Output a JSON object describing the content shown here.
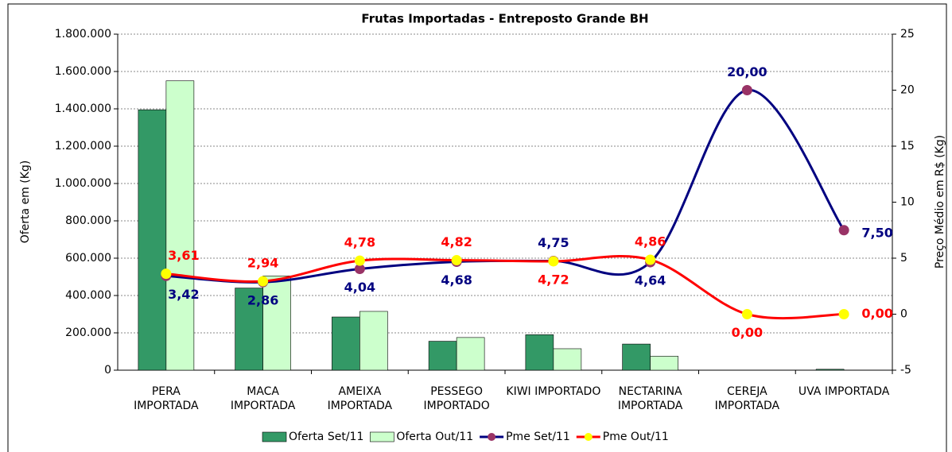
{
  "chart_data": {
    "type": "bar-line",
    "title": "Frutas Importadas - Entreposto Grande BH",
    "ylabel": "Oferta em (Kg)",
    "y2label": "Preço Médio em R$ (Kg)",
    "categories": [
      "PERA IMPORTADA",
      "MACA IMPORTADA",
      "AMEIXA IMPORTADA",
      "PESSEGO IMPORTADO",
      "KIWI IMPORTADO",
      "NECTARINA IMPORTADA",
      "CEREJA IMPORTADA",
      "UVA IMPORTADA"
    ],
    "series": [
      {
        "name": "Oferta Set/11",
        "type": "bar",
        "color": "#339966",
        "values": [
          1395000,
          440000,
          285000,
          155000,
          190000,
          140000,
          0,
          5000
        ]
      },
      {
        "name": "Oferta Out/11",
        "type": "bar",
        "color": "#ccffcc",
        "values": [
          1550000,
          505000,
          315000,
          175000,
          115000,
          75000,
          0,
          0
        ]
      },
      {
        "name": "Pme Set/11",
        "type": "line",
        "axis": "y2",
        "color": "#000080",
        "marker_color": "#993366",
        "values": [
          3.42,
          2.86,
          4.04,
          4.68,
          4.75,
          4.64,
          20.0,
          7.5
        ],
        "value_labels": [
          "3,42",
          "2,86",
          "4,04",
          "4,68",
          "4,75",
          "4,64",
          "20,00",
          "7,50"
        ]
      },
      {
        "name": "Pme Out/11",
        "type": "line",
        "axis": "y2",
        "color": "#ff0000",
        "marker_color": "#ffff00",
        "values": [
          3.61,
          2.94,
          4.78,
          4.82,
          4.72,
          4.86,
          0.0,
          0.0
        ],
        "value_labels": [
          "3,61",
          "2,94",
          "4,78",
          "4,82",
          "4,72",
          "4,86",
          "0,00",
          "0,00"
        ]
      }
    ],
    "ylim": [
      0,
      1800000
    ],
    "yticks": [
      0,
      {
        "value": 200000,
        "label": "200.000"
      },
      {
        "value": 400000,
        "label": "400.000"
      },
      {
        "value": 600000,
        "label": "600.000"
      },
      {
        "value": 800000,
        "label": "800.000"
      },
      {
        "value": 1000000,
        "label": "1.000.000"
      },
      {
        "value": 1200000,
        "label": "1.200.000"
      },
      {
        "value": 1400000,
        "label": "1.400.000"
      },
      {
        "value": 1600000,
        "label": "1.600.000"
      },
      {
        "value": 1800000,
        "label": "1.800.000"
      }
    ],
    "y2lim": [
      -5,
      25
    ],
    "y2ticks": [
      -5,
      0,
      5,
      10,
      15,
      20,
      25
    ],
    "grid": true,
    "legend": "bottom"
  }
}
